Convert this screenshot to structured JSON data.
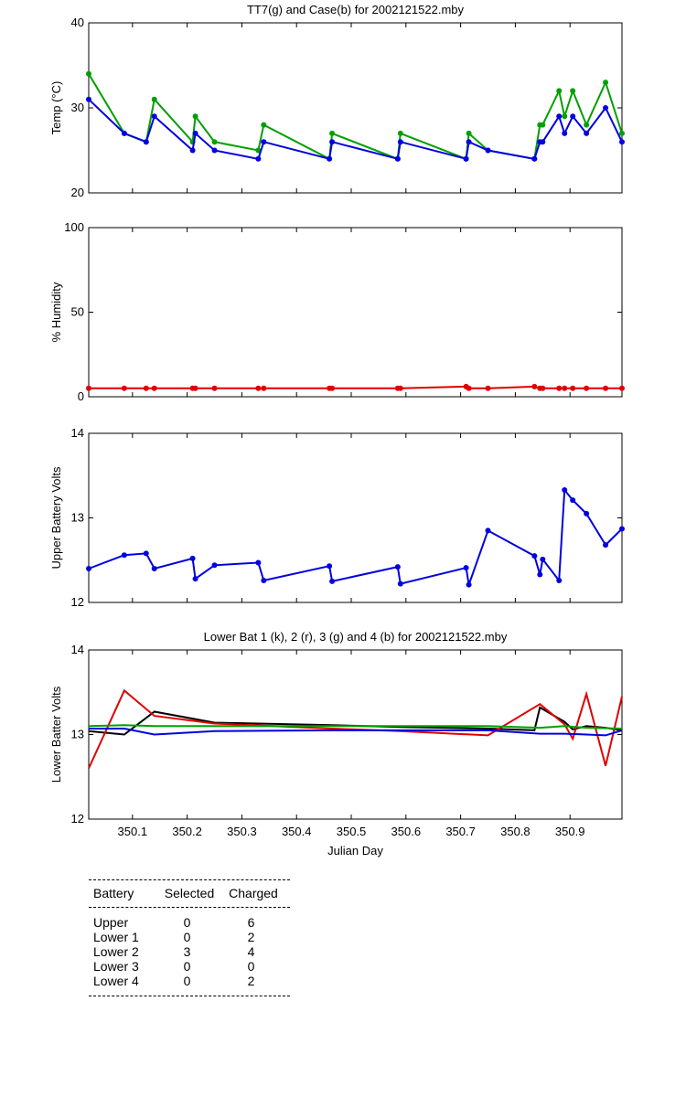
{
  "chart_data": [
    {
      "type": "line",
      "title": "TT7(g) and Case(b) for 2002121522.mby",
      "xlabel": "",
      "ylabel": "Temp  (°C)",
      "xlim": [
        350.02,
        350.995
      ],
      "ylim": [
        20,
        40
      ],
      "yticks": [
        "20",
        "30",
        "40"
      ],
      "series": [
        {
          "name": "TT7",
          "color": "#00a000",
          "x": [
            350.02,
            350.085,
            350.125,
            350.14,
            350.21,
            350.215,
            350.25,
            350.33,
            350.34,
            350.46,
            350.465,
            350.585,
            350.59,
            350.71,
            350.715,
            350.75,
            350.835,
            350.845,
            350.85,
            350.88,
            350.89,
            350.905,
            350.93,
            350.965,
            350.995
          ],
          "y": [
            34,
            27,
            26,
            31,
            26,
            29,
            26,
            25,
            28,
            24,
            27,
            24,
            27,
            24,
            27,
            25,
            24,
            28,
            28,
            32,
            29,
            32,
            28,
            33,
            27
          ]
        },
        {
          "name": "Case",
          "color": "#0000e0",
          "x": [
            350.02,
            350.085,
            350.125,
            350.14,
            350.21,
            350.215,
            350.25,
            350.33,
            350.34,
            350.46,
            350.465,
            350.585,
            350.59,
            350.71,
            350.715,
            350.75,
            350.835,
            350.845,
            350.85,
            350.88,
            350.89,
            350.905,
            350.93,
            350.965,
            350.995
          ],
          "y": [
            31,
            27,
            26,
            29,
            25,
            27,
            25,
            24,
            26,
            24,
            26,
            24,
            26,
            24,
            26,
            25,
            24,
            26,
            26,
            29,
            27,
            29,
            27,
            30,
            26
          ]
        }
      ]
    },
    {
      "type": "line",
      "title": "",
      "xlabel": "",
      "ylabel": "% Humidity",
      "xlim": [
        350.02,
        350.995
      ],
      "ylim": [
        0,
        100
      ],
      "yticks": [
        "0",
        "50",
        "100"
      ],
      "series": [
        {
          "name": "Humidity",
          "color": "#e00000",
          "x": [
            350.02,
            350.085,
            350.125,
            350.14,
            350.21,
            350.215,
            350.25,
            350.33,
            350.34,
            350.46,
            350.465,
            350.585,
            350.59,
            350.71,
            350.715,
            350.75,
            350.835,
            350.845,
            350.85,
            350.88,
            350.89,
            350.905,
            350.93,
            350.965,
            350.995
          ],
          "y": [
            5,
            5,
            5,
            5,
            5,
            5,
            5,
            5,
            5,
            5,
            5,
            5,
            5,
            6,
            5,
            5,
            6,
            5,
            5,
            5,
            5,
            5,
            5,
            5,
            5
          ]
        }
      ]
    },
    {
      "type": "line",
      "title": "",
      "xlabel": "",
      "ylabel": "Upper Battery Volts",
      "xlim": [
        350.02,
        350.995
      ],
      "ylim": [
        12,
        14
      ],
      "yticks": [
        "12",
        "13",
        "14"
      ],
      "series": [
        {
          "name": "Upper",
          "color": "#0000e0",
          "x": [
            350.02,
            350.085,
            350.125,
            350.14,
            350.21,
            350.215,
            350.25,
            350.33,
            350.34,
            350.46,
            350.465,
            350.585,
            350.59,
            350.71,
            350.715,
            350.75,
            350.835,
            350.845,
            350.85,
            350.88,
            350.89,
            350.905,
            350.93,
            350.965,
            350.995
          ],
          "y": [
            12.4,
            12.56,
            12.58,
            12.4,
            12.52,
            12.28,
            12.44,
            12.47,
            12.26,
            12.43,
            12.25,
            12.42,
            12.22,
            12.41,
            12.21,
            12.85,
            12.55,
            12.33,
            12.51,
            12.26,
            13.33,
            13.21,
            13.05,
            12.68,
            12.87
          ]
        }
      ]
    },
    {
      "type": "line",
      "title": "Lower Bat 1 (k), 2 (r), 3 (g) and 4 (b) for 2002121522.mby",
      "xlabel": "Julian Day",
      "ylabel": "Lower Batter Volts",
      "xlim": [
        350.02,
        350.995
      ],
      "ylim": [
        12,
        14
      ],
      "yticks": [
        "12",
        "13",
        "14"
      ],
      "xticks": [
        "350.1",
        "350.2",
        "350.3",
        "350.4",
        "350.5",
        "350.6",
        "350.7",
        "350.8",
        "350.9"
      ],
      "xtick_values": [
        350.1,
        350.2,
        350.3,
        350.4,
        350.5,
        350.6,
        350.7,
        350.8,
        350.9
      ],
      "series": [
        {
          "name": "Lower 1",
          "color": "#000000",
          "x": [
            350.02,
            350.085,
            350.14,
            350.25,
            350.465,
            350.59,
            350.75,
            350.835,
            350.845,
            350.89,
            350.905,
            350.93,
            350.965,
            350.995
          ],
          "y": [
            13.04,
            13.0,
            13.27,
            13.14,
            13.11,
            13.09,
            13.07,
            13.05,
            13.32,
            13.15,
            13.06,
            13.1,
            13.08,
            13.05
          ]
        },
        {
          "name": "Lower 2",
          "color": "#e00000",
          "x": [
            350.02,
            350.085,
            350.14,
            350.25,
            350.465,
            350.59,
            350.75,
            350.845,
            350.89,
            350.905,
            350.93,
            350.965,
            350.995
          ],
          "y": [
            12.6,
            13.52,
            13.22,
            13.13,
            13.07,
            13.04,
            12.99,
            13.36,
            13.12,
            12.95,
            13.48,
            12.63,
            13.45
          ]
        },
        {
          "name": "Lower 3",
          "color": "#00a000",
          "x": [
            350.02,
            350.085,
            350.14,
            350.25,
            350.465,
            350.59,
            350.75,
            350.845,
            350.89,
            350.93,
            350.995
          ],
          "y": [
            13.1,
            13.11,
            13.1,
            13.1,
            13.1,
            13.1,
            13.1,
            13.08,
            13.1,
            13.08,
            13.07
          ]
        },
        {
          "name": "Lower 4",
          "color": "#0000e0",
          "x": [
            350.02,
            350.085,
            350.14,
            350.25,
            350.465,
            350.59,
            350.75,
            350.845,
            350.89,
            350.93,
            350.965,
            350.995
          ],
          "y": [
            13.07,
            13.07,
            13.0,
            13.04,
            13.05,
            13.05,
            13.05,
            13.01,
            13.01,
            13.0,
            12.99,
            13.05
          ]
        }
      ]
    }
  ],
  "battery_table": {
    "headers": [
      "Battery",
      "Selected",
      "Charged"
    ],
    "rows": [
      [
        "Upper",
        "0",
        "6"
      ],
      [
        "Lower 1",
        "0",
        "2"
      ],
      [
        "Lower 2",
        "3",
        "4"
      ],
      [
        "Lower 3",
        "0",
        "0"
      ],
      [
        "Lower 4",
        "0",
        "2"
      ]
    ]
  }
}
